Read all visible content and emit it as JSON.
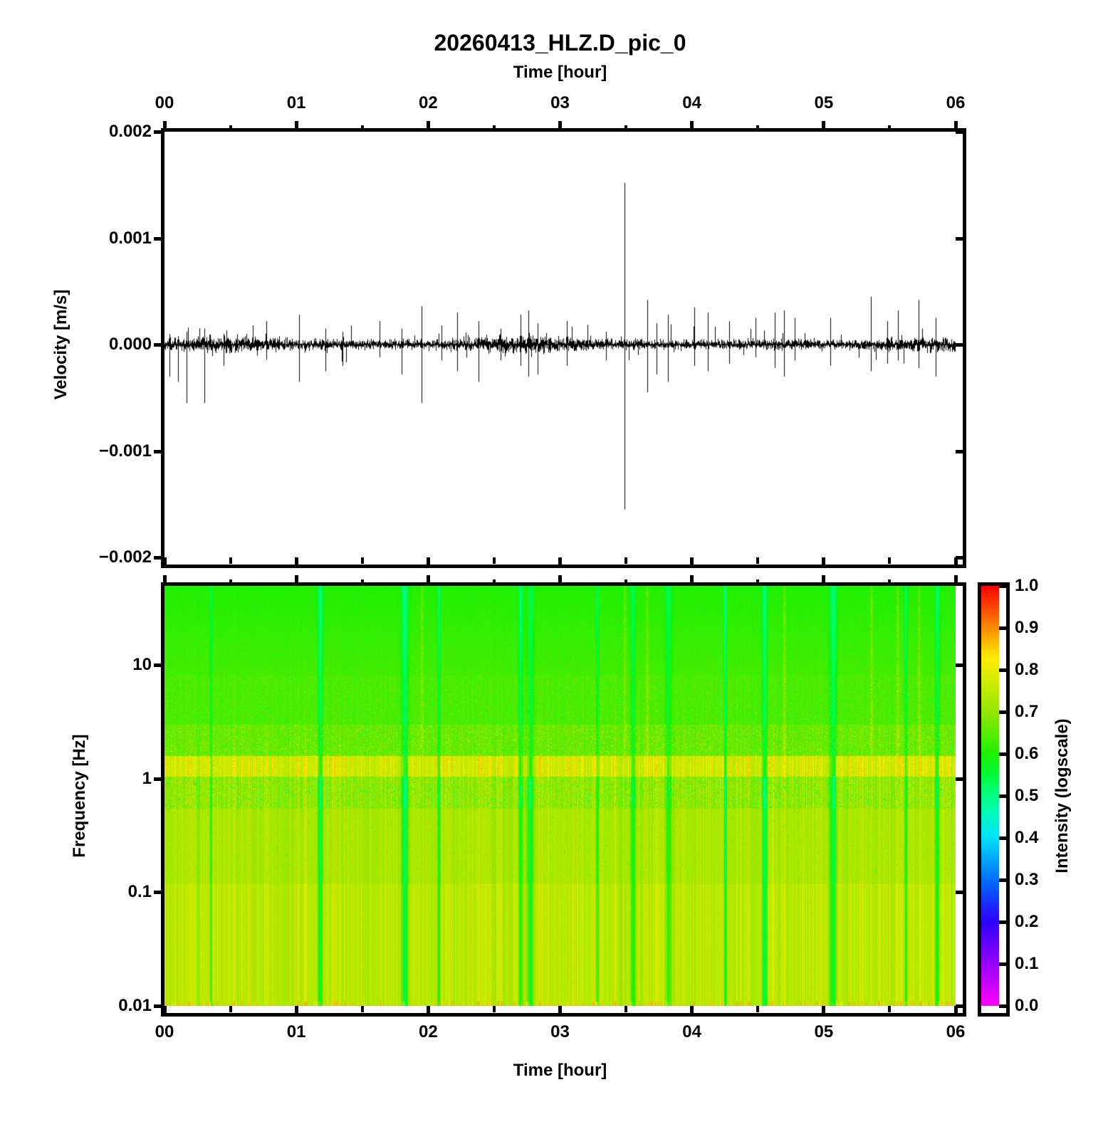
{
  "title": "20260413_HLZ.D_pic_0",
  "colors": {
    "background": "#ffffff",
    "foreground": "#000000",
    "trace": "#000000"
  },
  "axes": {
    "time": {
      "label_top": "Time [hour]",
      "label_bottom": "Time [hour]",
      "tick_labels": [
        "00",
        "01",
        "02",
        "03",
        "04",
        "05",
        "06"
      ],
      "minor_tick_step_hours": 0.5,
      "range_hours": [
        0,
        6
      ]
    },
    "velocity": {
      "label": "Velocity [m/s]",
      "tick_labels": [
        "0.002",
        "0.001",
        "0.000",
        "−0.001",
        "−0.002"
      ],
      "range": [
        -0.002,
        0.002
      ]
    },
    "frequency": {
      "label": "Frequency [Hz]",
      "tick_labels": [
        "10",
        "1",
        "0.1",
        "0.01"
      ],
      "tick_values": [
        10,
        1,
        0.1,
        0.01
      ],
      "range_hz": [
        0.01,
        50
      ],
      "scale": "log"
    },
    "colorbar": {
      "label": "Intensity (logscale)",
      "tick_labels": [
        "1.0",
        "0.9",
        "0.8",
        "0.7",
        "0.6",
        "0.5",
        "0.4",
        "0.3",
        "0.2",
        "0.1",
        "0.0"
      ],
      "range": [
        0,
        1
      ]
    }
  },
  "colormap": {
    "name": "rainbow (reversed gist_rainbow)",
    "stops": [
      {
        "t": 0.0,
        "rgb": [
          255,
          0,
          255
        ]
      },
      {
        "t": 0.1,
        "rgb": [
          150,
          0,
          255
        ]
      },
      {
        "t": 0.2,
        "rgb": [
          45,
          0,
          255
        ]
      },
      {
        "t": 0.3,
        "rgb": [
          0,
          110,
          255
        ]
      },
      {
        "t": 0.4,
        "rgb": [
          0,
          225,
          255
        ]
      },
      {
        "t": 0.47,
        "rgb": [
          0,
          255,
          170
        ]
      },
      {
        "t": 0.55,
        "rgb": [
          0,
          250,
          60
        ]
      },
      {
        "t": 0.6,
        "rgb": [
          30,
          240,
          0
        ]
      },
      {
        "t": 0.7,
        "rgb": [
          150,
          230,
          0
        ]
      },
      {
        "t": 0.78,
        "rgb": [
          215,
          235,
          0
        ]
      },
      {
        "t": 0.83,
        "rgb": [
          255,
          235,
          0
        ]
      },
      {
        "t": 0.9,
        "rgb": [
          255,
          140,
          0
        ]
      },
      {
        "t": 1.0,
        "rgb": [
          255,
          0,
          0
        ]
      }
    ]
  },
  "chart_data": [
    {
      "type": "line",
      "name": "seismogram-waveform",
      "title": "20260413_HLZ.D_pic_0",
      "xlabel": "Time [hour]",
      "ylabel": "Velocity [m/s]",
      "xlim": [
        0,
        6
      ],
      "ylim": [
        -0.002,
        0.002
      ],
      "line_color": "#000000",
      "noise_rms_ms": 2.2e-05,
      "description": "continuous seismic noise band around 0 with impulsive spikes; largest event near 3.49 h reaching about +0.0015/-0.0015 m/s",
      "spikes": [
        {
          "t": 0.04,
          "up": 0.0001,
          "down": 0.0003
        },
        {
          "t": 0.1,
          "up": 8e-05,
          "down": 0.00035
        },
        {
          "t": 0.17,
          "up": 0.00012,
          "down": 0.00055
        },
        {
          "t": 0.3,
          "up": 0.00015,
          "down": 0.00055
        },
        {
          "t": 0.45,
          "up": 0.0001,
          "down": 0.0002
        },
        {
          "t": 0.77,
          "up": 0.00022,
          "down": 0.00014
        },
        {
          "t": 1.02,
          "up": 0.00028,
          "down": 0.00035
        },
        {
          "t": 1.22,
          "up": 0.00015,
          "down": 0.00025
        },
        {
          "t": 1.35,
          "up": 0.00012,
          "down": 0.0002
        },
        {
          "t": 1.63,
          "up": 0.00022,
          "down": 0.00012
        },
        {
          "t": 1.8,
          "up": 0.00015,
          "down": 0.00028
        },
        {
          "t": 1.95,
          "up": 0.00036,
          "down": 0.00055
        },
        {
          "t": 2.1,
          "up": 0.00018,
          "down": 0.00015
        },
        {
          "t": 2.22,
          "up": 0.0003,
          "down": 0.00025
        },
        {
          "t": 2.38,
          "up": 0.00022,
          "down": 0.00035
        },
        {
          "t": 2.55,
          "up": 0.00015,
          "down": 0.00015
        },
        {
          "t": 2.7,
          "up": 0.00028,
          "down": 0.0002
        },
        {
          "t": 2.76,
          "up": 0.00032,
          "down": 0.0003
        },
        {
          "t": 2.83,
          "up": 0.0002,
          "down": 0.00028
        },
        {
          "t": 3.05,
          "up": 0.00022,
          "down": 0.0002
        },
        {
          "t": 3.35,
          "up": 0.00012,
          "down": 0.00015
        },
        {
          "t": 3.49,
          "up": 0.00152,
          "down": 0.00155
        },
        {
          "t": 3.66,
          "up": 0.00042,
          "down": 0.00045
        },
        {
          "t": 3.73,
          "up": 0.0002,
          "down": 0.00028
        },
        {
          "t": 3.82,
          "up": 0.00028,
          "down": 0.00035
        },
        {
          "t": 4.02,
          "up": 0.00035,
          "down": 0.0002
        },
        {
          "t": 4.12,
          "up": 0.0003,
          "down": 0.00025
        },
        {
          "t": 4.28,
          "up": 0.00022,
          "down": 0.00018
        },
        {
          "t": 4.48,
          "up": 0.00025,
          "down": 0.00012
        },
        {
          "t": 4.63,
          "up": 0.0003,
          "down": 0.00022
        },
        {
          "t": 4.7,
          "up": 0.00032,
          "down": 0.0003
        },
        {
          "t": 4.78,
          "up": 0.00025,
          "down": 0.00015
        },
        {
          "t": 5.05,
          "up": 0.00025,
          "down": 0.0002
        },
        {
          "t": 5.36,
          "up": 0.00045,
          "down": 0.00025
        },
        {
          "t": 5.48,
          "up": 0.00022,
          "down": 0.00018
        },
        {
          "t": 5.56,
          "up": 0.00032,
          "down": 0.00015
        },
        {
          "t": 5.72,
          "up": 0.00042,
          "down": 0.00022
        },
        {
          "t": 5.85,
          "up": 0.00025,
          "down": 0.0003
        }
      ]
    },
    {
      "type": "heatmap",
      "name": "spectrogram",
      "xlabel": "Time [hour]",
      "ylabel": "Frequency [Hz]",
      "xlim_hours": [
        0,
        6
      ],
      "f_min": 0.01,
      "f_max": 50,
      "yscale": "log",
      "intensity_scale": "Intensity (logscale), 0.0-1.0 rainbow colormap",
      "displayed_intensity_range": [
        0.5,
        0.95
      ],
      "bands": [
        {
          "f_min": 8,
          "f_max": 50,
          "base_intensity": 0.62,
          "texture": "green with fine dark-green speckle, brightest green at top"
        },
        {
          "f_min": 3,
          "f_max": 8,
          "base_intensity": 0.64,
          "texture": "green speckle with faint vertical stripes"
        },
        {
          "f_min": 1.6,
          "f_max": 3,
          "base_intensity": 0.665,
          "texture": "mottled green/yellow dots"
        },
        {
          "f_min": 1.05,
          "f_max": 1.6,
          "base_intensity": 0.78,
          "texture": "dense bright yellow-orange vertical stripe band"
        },
        {
          "f_min": 0.55,
          "f_max": 1.05,
          "base_intensity": 0.71,
          "texture": "yellow stripes interrupted by dark-green vertical dashes"
        },
        {
          "f_min": 0.12,
          "f_max": 0.55,
          "base_intensity": 0.73,
          "texture": "smooth vertical yellow striping"
        },
        {
          "f_min": 0.01,
          "f_max": 0.12,
          "base_intensity": 0.75,
          "texture": "strong yellow stripes with thin orange-red lines near bottom"
        }
      ],
      "green_streak_hours": [
        0.35,
        1.18,
        1.82,
        2.08,
        2.7,
        2.77,
        3.28,
        3.55,
        3.82,
        4.25,
        4.55,
        5.07,
        5.62,
        5.86
      ],
      "event_streak_hours": [
        1.95,
        2.76,
        3.49,
        3.66,
        4.7,
        5.36,
        5.56,
        5.72
      ]
    }
  ]
}
